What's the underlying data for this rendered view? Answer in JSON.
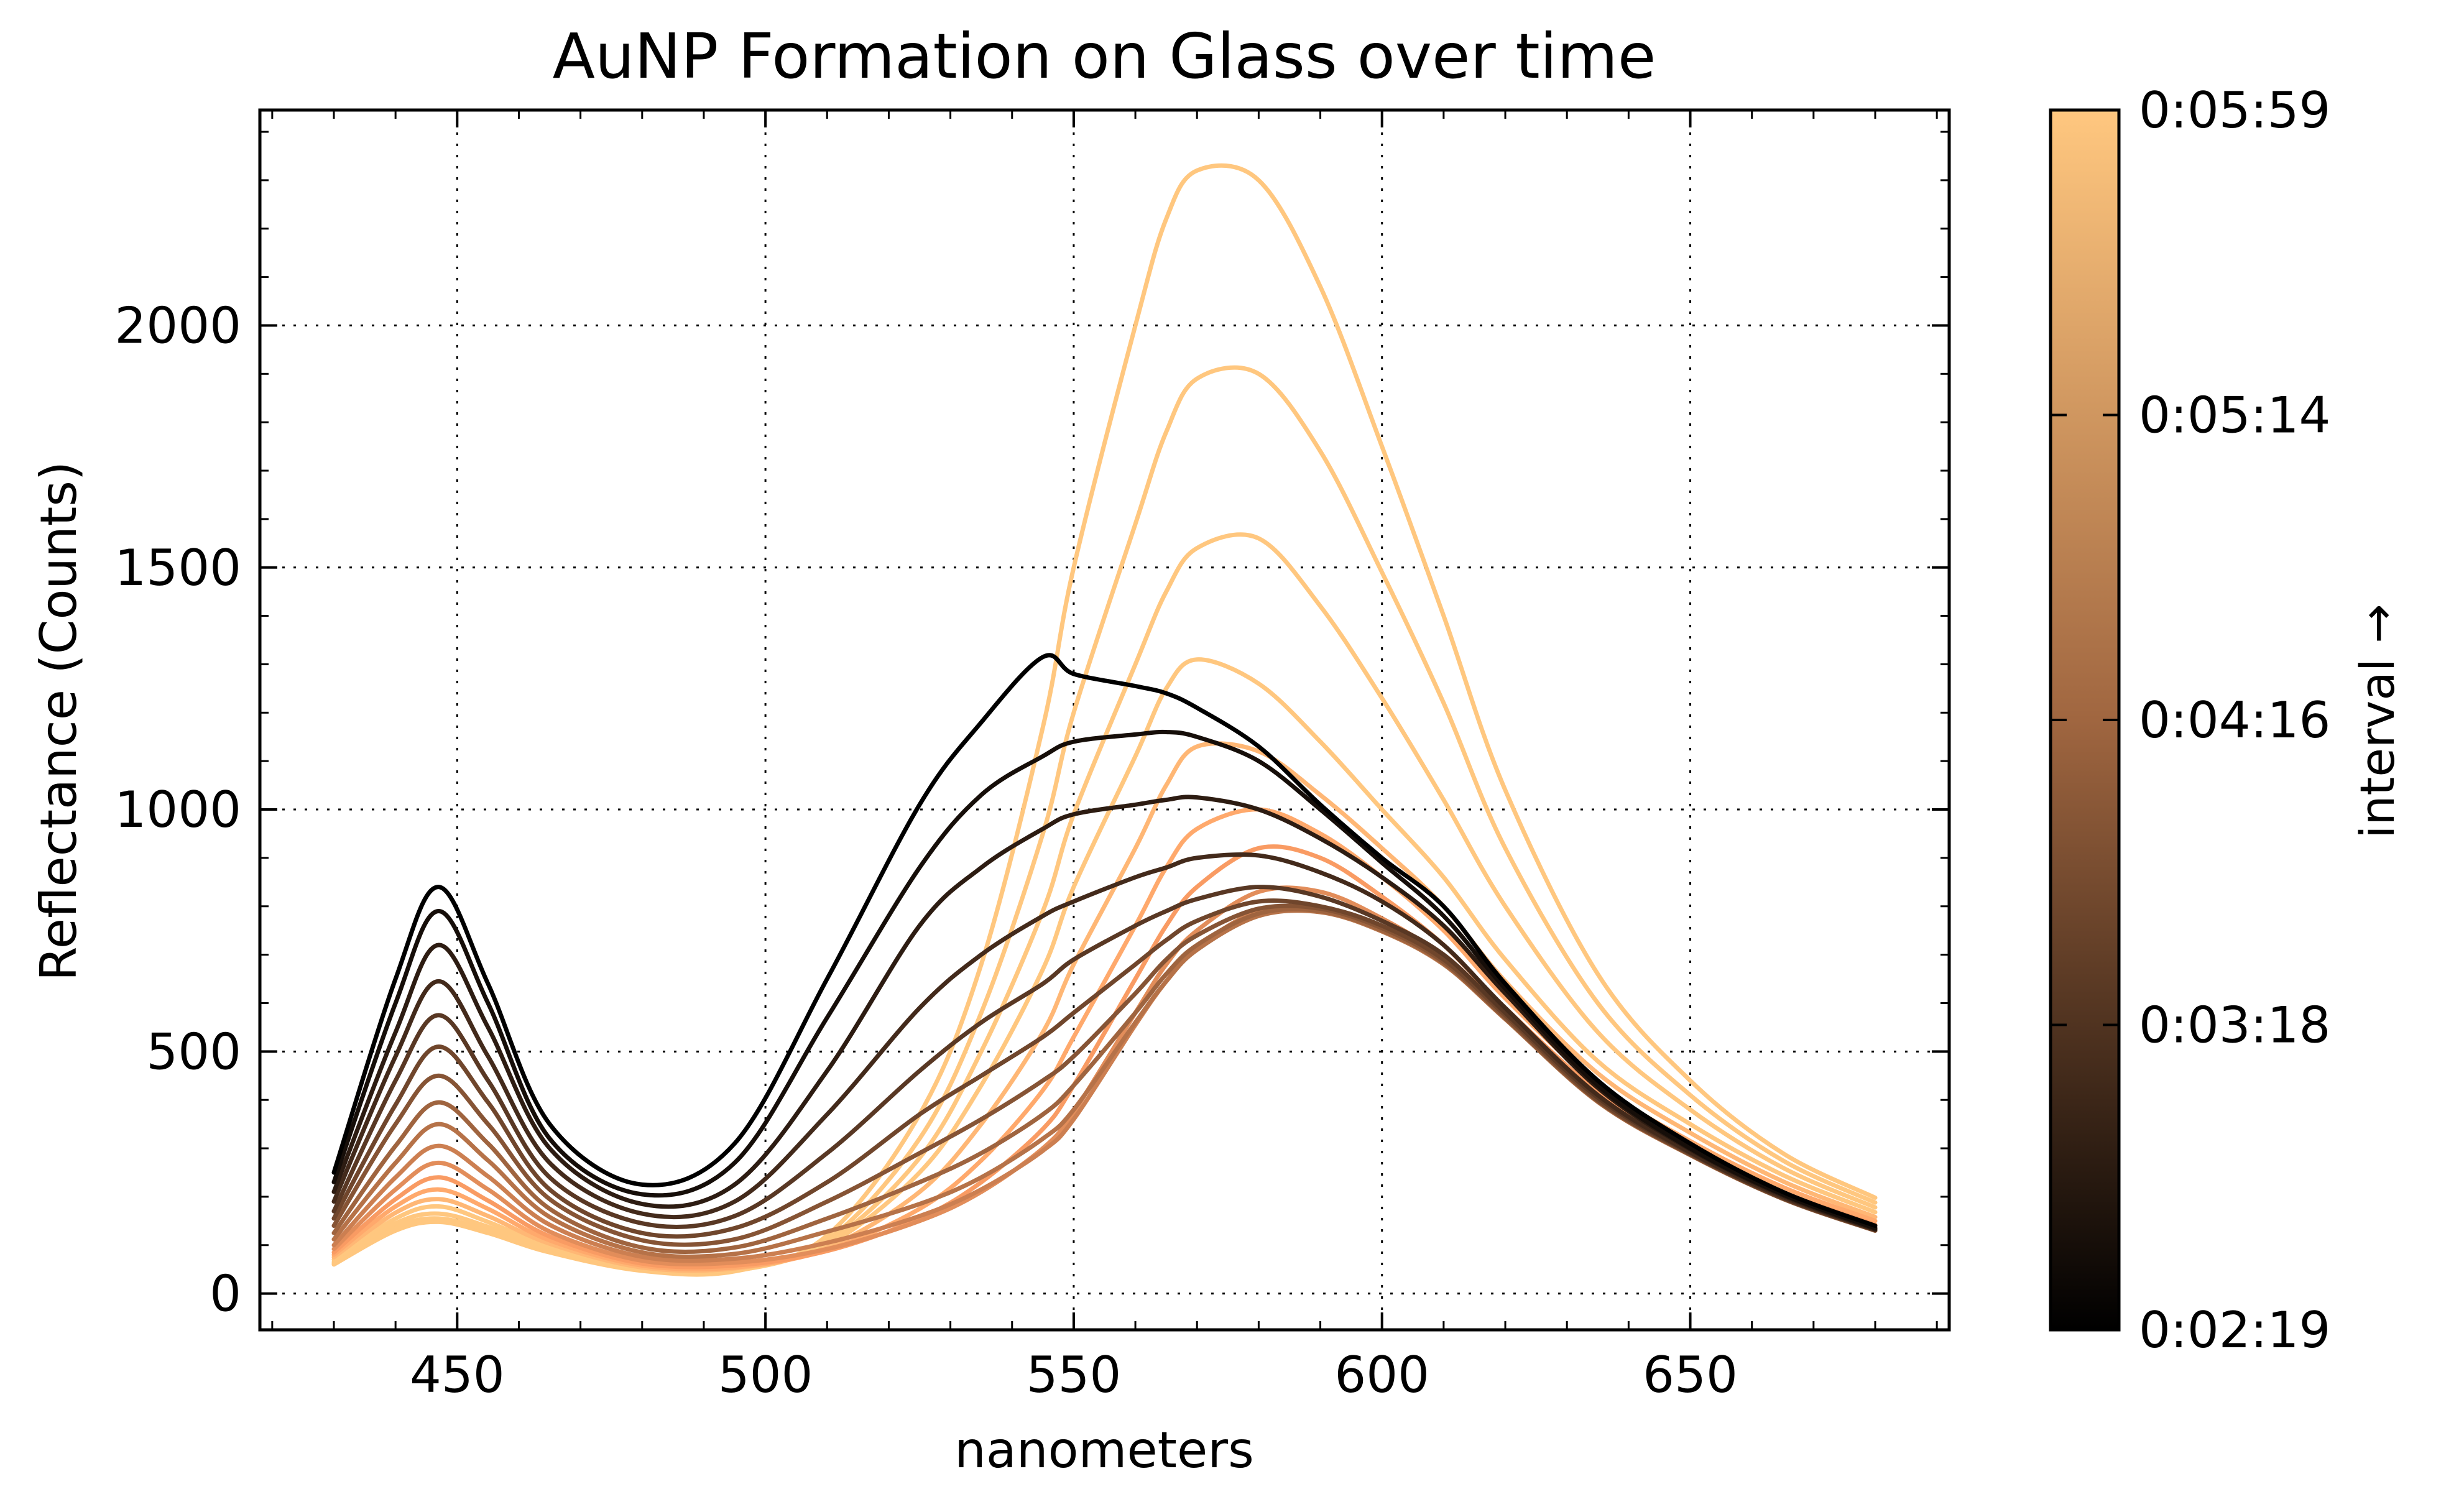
{
  "chart_data": {
    "type": "line",
    "title": "AuNP Formation on Glass over time",
    "xlabel": "nanometers",
    "ylabel": "Reflectance (Counts)",
    "xlim": [
      418,
      692
    ],
    "ylim": [
      -75,
      2445
    ],
    "x_ticks": [
      450,
      500,
      550,
      600,
      650
    ],
    "y_ticks": [
      0,
      500,
      1000,
      1500,
      2000
    ],
    "grid": true,
    "colorbar": {
      "label": "interval →",
      "ticks": [
        {
          "label": "0:02:19",
          "fraction": 0.0
        },
        {
          "label": "0:03:18",
          "fraction": 0.25
        },
        {
          "label": "0:04:16",
          "fraction": 0.5
        },
        {
          "label": "0:05:14",
          "fraction": 0.75
        },
        {
          "label": "0:05:59",
          "fraction": 1.0
        }
      ],
      "colormap": "copper",
      "colors": [
        "#000000",
        "#ffc77f"
      ]
    },
    "x": [
      430,
      440,
      447,
      455,
      465,
      480,
      495,
      510,
      525,
      535,
      545,
      550,
      560,
      565,
      570,
      580,
      590,
      600,
      610,
      620,
      635,
      650,
      665,
      680
    ],
    "series": [
      {
        "color_fraction": 0.0,
        "values": [
          250,
          650,
          840,
          640,
          350,
          225,
          310,
          650,
          1010,
          1180,
          1315,
          1280,
          1255,
          1240,
          1210,
          1130,
          1010,
          900,
          800,
          640,
          440,
          310,
          210,
          140
        ]
      },
      {
        "color_fraction": 0.07,
        "values": [
          230,
          600,
          790,
          600,
          320,
          205,
          270,
          570,
          880,
          1030,
          1110,
          1140,
          1155,
          1160,
          1150,
          1100,
          1000,
          890,
          780,
          630,
          430,
          300,
          205,
          135
        ]
      },
      {
        "color_fraction": 0.14,
        "values": [
          210,
          540,
          720,
          550,
          300,
          185,
          225,
          460,
          760,
          880,
          960,
          990,
          1010,
          1020,
          1025,
          1000,
          940,
          860,
          760,
          620,
          425,
          298,
          203,
          133
        ]
      },
      {
        "color_fraction": 0.21,
        "values": [
          190,
          490,
          645,
          490,
          270,
          165,
          190,
          370,
          590,
          700,
          780,
          810,
          860,
          880,
          900,
          905,
          870,
          810,
          720,
          590,
          410,
          292,
          200,
          132
        ]
      },
      {
        "color_fraction": 0.28,
        "values": [
          170,
          440,
          575,
          440,
          240,
          145,
          160,
          290,
          460,
          560,
          640,
          690,
          760,
          790,
          815,
          840,
          820,
          770,
          700,
          580,
          405,
          290,
          198,
          131
        ]
      },
      {
        "color_fraction": 0.35,
        "values": [
          155,
          390,
          510,
          395,
          215,
          125,
          135,
          230,
          370,
          450,
          530,
          580,
          680,
          730,
          770,
          810,
          800,
          760,
          690,
          575,
          400,
          288,
          197,
          131
        ]
      },
      {
        "color_fraction": 0.42,
        "values": [
          140,
          350,
          450,
          350,
          195,
          110,
          112,
          190,
          290,
          360,
          440,
          490,
          620,
          690,
          740,
          795,
          795,
          755,
          685,
          570,
          398,
          287,
          196,
          130
        ]
      },
      {
        "color_fraction": 0.5,
        "values": [
          125,
          305,
          395,
          310,
          175,
          95,
          95,
          155,
          230,
          290,
          370,
          430,
          580,
          660,
          720,
          785,
          790,
          750,
          682,
          568,
          397,
          287,
          196,
          130
        ]
      },
      {
        "color_fraction": 0.57,
        "values": [
          112,
          270,
          350,
          275,
          158,
          85,
          82,
          128,
          185,
          240,
          320,
          380,
          560,
          645,
          710,
          780,
          788,
          748,
          680,
          567,
          396,
          286,
          196,
          130
        ]
      },
      {
        "color_fraction": 0.64,
        "values": [
          100,
          240,
          305,
          242,
          142,
          76,
          72,
          105,
          160,
          215,
          295,
          360,
          555,
          645,
          715,
          790,
          795,
          752,
          682,
          568,
          398,
          288,
          197,
          132
        ]
      },
      {
        "color_fraction": 0.71,
        "values": [
          92,
          215,
          270,
          215,
          128,
          68,
          64,
          92,
          150,
          210,
          300,
          375,
          580,
          680,
          750,
          830,
          830,
          775,
          695,
          575,
          405,
          293,
          202,
          136
        ]
      },
      {
        "color_fraction": 0.78,
        "values": [
          85,
          195,
          240,
          192,
          118,
          62,
          58,
          88,
          155,
          230,
          340,
          430,
          650,
          760,
          840,
          920,
          900,
          820,
          720,
          590,
          418,
          303,
          210,
          142
        ]
      },
      {
        "color_fraction": 0.85,
        "values": [
          80,
          180,
          215,
          175,
          110,
          58,
          54,
          90,
          175,
          275,
          420,
          530,
          760,
          880,
          960,
          1000,
          950,
          860,
          750,
          610,
          432,
          315,
          220,
          150
        ]
      },
      {
        "color_fraction": 0.92,
        "values": [
          75,
          167,
          195,
          160,
          103,
          54,
          52,
          95,
          210,
          350,
          540,
          680,
          920,
          1050,
          1130,
          1120,
          1030,
          920,
          800,
          645,
          455,
          332,
          232,
          158
        ]
      },
      {
        "color_fraction": 1.0,
        "values": [
          70,
          155,
          180,
          148,
          97,
          52,
          50,
          100,
          250,
          430,
          670,
          840,
          1110,
          1250,
          1310,
          1260,
          1140,
          1000,
          860,
          690,
          480,
          350,
          245,
          168
        ]
      },
      {
        "color_fraction": 1.0,
        "values": [
          65,
          145,
          165,
          138,
          92,
          50,
          48,
          105,
          280,
          500,
          790,
          990,
          1300,
          1450,
          1540,
          1560,
          1420,
          1230,
          1020,
          800,
          540,
          380,
          260,
          178
        ]
      },
      {
        "color_fraction": 1.0,
        "values": [
          62,
          137,
          155,
          130,
          88,
          48,
          47,
          110,
          320,
          580,
          950,
          1200,
          1590,
          1780,
          1890,
          1900,
          1740,
          1490,
          1220,
          920,
          600,
          410,
          275,
          188
        ]
      },
      {
        "color_fraction": 1.0,
        "values": [
          60,
          130,
          148,
          125,
          85,
          47,
          46,
          120,
          370,
          680,
          1170,
          1500,
          2000,
          2220,
          2320,
          2300,
          2080,
          1750,
          1400,
          1040,
          660,
          440,
          290,
          198
        ]
      }
    ]
  }
}
